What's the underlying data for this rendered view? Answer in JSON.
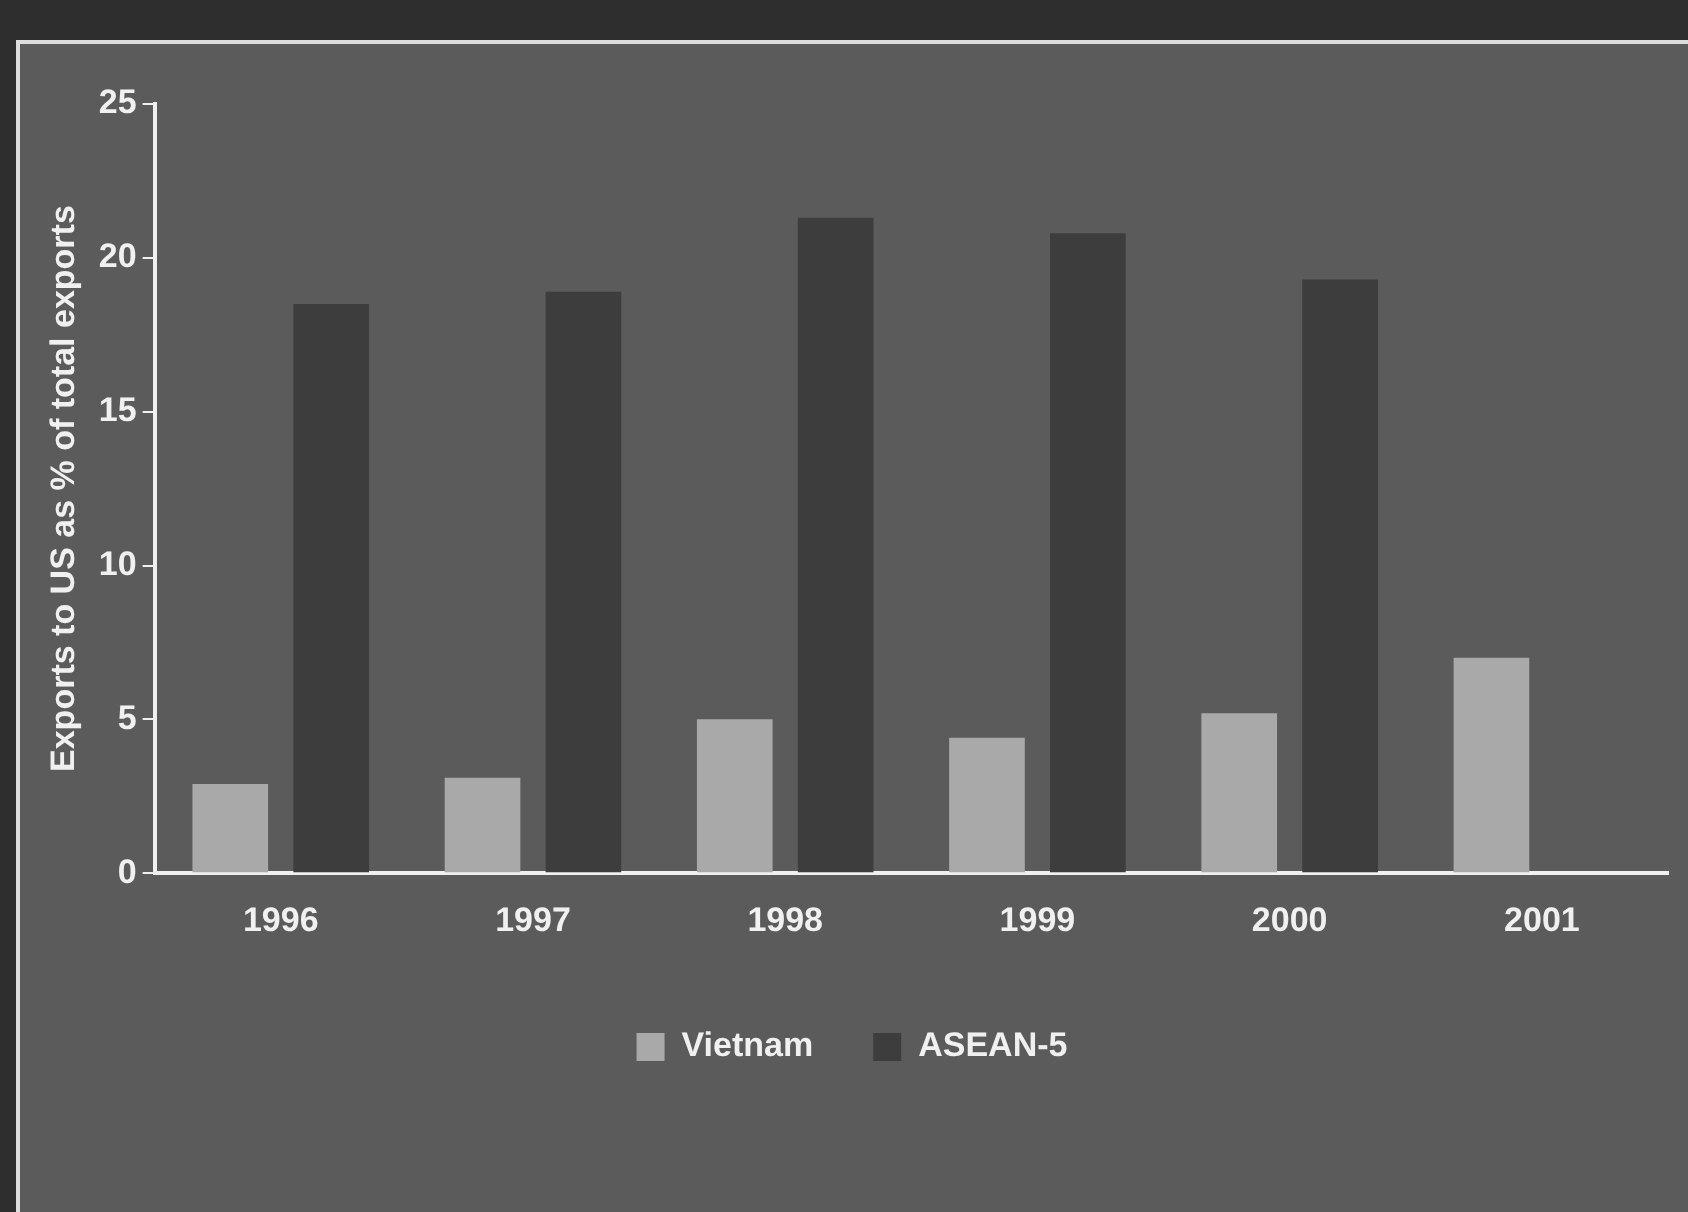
{
  "chart_data": {
    "type": "bar",
    "ylabel": "Exports to US as % of total exports",
    "categories": [
      "1996",
      "1997",
      "1998",
      "1999",
      "2000",
      "2001"
    ],
    "series": [
      {
        "name": "Vietnam",
        "color": "#a9a9a9",
        "values": [
          2.9,
          3.1,
          5.0,
          4.4,
          5.2,
          7.0
        ]
      },
      {
        "name": "ASEAN-5",
        "color": "#3d3d3d",
        "values": [
          18.5,
          18.9,
          21.3,
          20.8,
          19.3,
          null
        ]
      }
    ],
    "ylim": [
      0,
      25
    ],
    "yticks": [
      0,
      5,
      10,
      15,
      20,
      25
    ],
    "grid": false,
    "legend": "bottom"
  }
}
